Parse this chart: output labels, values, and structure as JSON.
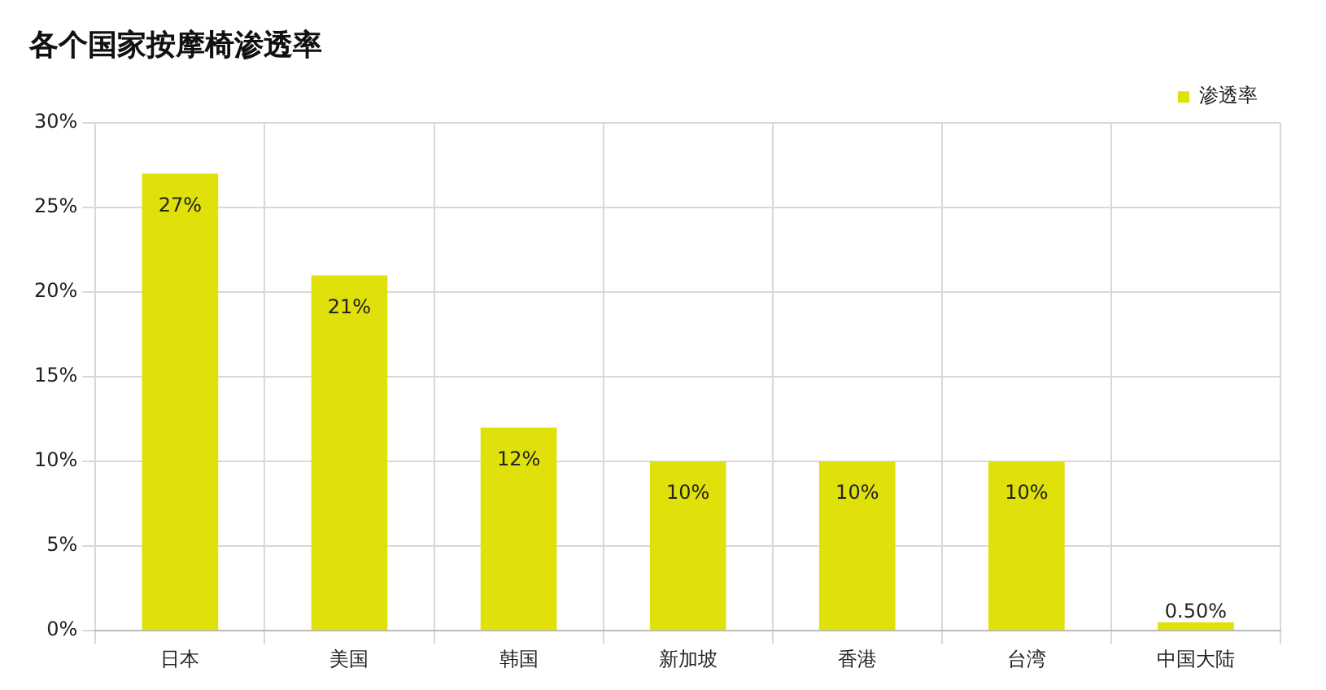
{
  "chart_data": {
    "type": "bar",
    "title": "各个国家按摩椅渗透率",
    "categories": [
      "日本",
      "美国",
      "韩国",
      "新加坡",
      "香港",
      "台湾",
      "中国大陆"
    ],
    "series": [
      {
        "name": "渗透率",
        "color": "#e0e00a",
        "values": [
          27,
          21,
          12,
          10,
          10,
          10,
          0.5
        ],
        "value_labels": [
          "27%",
          "21%",
          "12%",
          "10%",
          "10%",
          "10%",
          "0.50%"
        ]
      }
    ],
    "ylim": [
      0,
      30
    ],
    "yticks": [
      {
        "value": 0,
        "label": "0%"
      },
      {
        "value": 5,
        "label": "5%"
      },
      {
        "value": 10,
        "label": "10%"
      },
      {
        "value": 15,
        "label": "15%"
      },
      {
        "value": 20,
        "label": "20%"
      },
      {
        "value": 25,
        "label": "25%"
      },
      {
        "value": 30,
        "label": "30%"
      }
    ],
    "grid": true,
    "legend": "top right"
  }
}
